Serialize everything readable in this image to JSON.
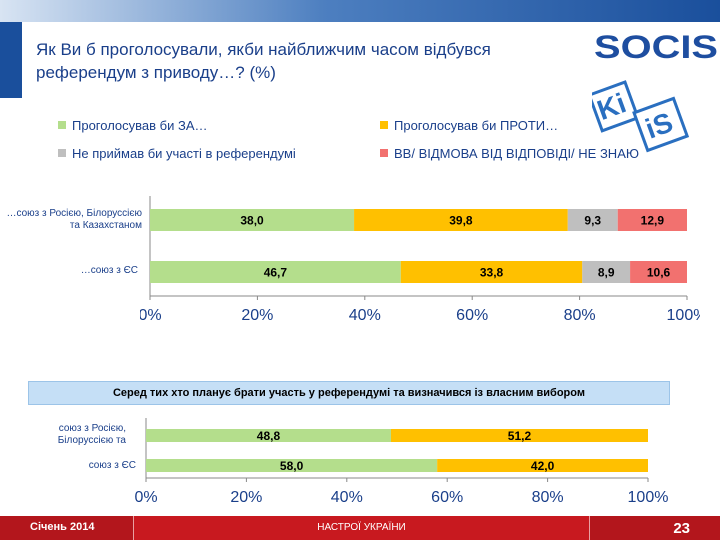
{
  "header": {
    "title_line1": "Як Ви б проголосували, якби найближчим часом відбувся",
    "title_line2": "референдум з приводу…? (%)"
  },
  "logo": {
    "text_main": "SOCIS",
    "text_kiis_1": "Ki",
    "text_kiis_2": "iS"
  },
  "legend": [
    {
      "label": "Проголосував би ЗА…",
      "color": "#b4de8c"
    },
    {
      "label": "Проголосував би ПРОТИ…",
      "color": "#ffc000"
    },
    {
      "label": "Не приймав би участі в референдумі",
      "color": "#bfbfbf"
    },
    {
      "label": "ВВ/ ВІДМОВА ВІД ВІДПОВІДІ/ НЕ ЗНАЮ",
      "color": "#f2716f"
    }
  ],
  "chart_data": [
    {
      "type": "bar",
      "orientation": "horizontal",
      "stacked": true,
      "categories": [
        "…союз з Росією, Білоруссією та Казахстаном",
        "…союз з ЄС"
      ],
      "category_lines": [
        [
          "…союз з Росією, Білоруссією",
          "та Казахстаном"
        ],
        [
          "…союз з ЄС"
        ]
      ],
      "series": [
        {
          "name": "Проголосував би ЗА…",
          "color": "#b4de8c",
          "values": [
            38.0,
            46.7
          ],
          "labels": [
            "38,0",
            "46,7"
          ]
        },
        {
          "name": "Проголосував би ПРОТИ…",
          "color": "#ffc000",
          "values": [
            39.8,
            33.8
          ],
          "labels": [
            "39,8",
            "33,8"
          ]
        },
        {
          "name": "Не приймав би участі в референдумі",
          "color": "#bfbfbf",
          "values": [
            9.3,
            8.9
          ],
          "labels": [
            "9,3",
            "8,9"
          ]
        },
        {
          "name": "ВВ/ ВІДМОВА ВІД ВІДПОВІДІ/ НЕ ЗНАЮ",
          "color": "#f2716f",
          "values": [
            12.9,
            10.6
          ],
          "labels": [
            "12,9",
            "10,6"
          ]
        }
      ],
      "xlim": [
        0,
        100
      ],
      "xticks": [
        "0%",
        "20%",
        "40%",
        "60%",
        "80%",
        "100%"
      ]
    },
    {
      "type": "bar",
      "orientation": "horizontal",
      "stacked": true,
      "title": "Серед тих хто планує брати участь у референдумі та визначився із власним вибором",
      "categories": [
        "союз з Росією, Білоруссією та",
        "союз з ЄС"
      ],
      "category_lines": [
        [
          "союз з Росією,",
          "Білоруссією та"
        ],
        [
          "союз з ЄС"
        ]
      ],
      "series": [
        {
          "name": "Проголосував би ЗА…",
          "color": "#b4de8c",
          "values": [
            48.8,
            58.0
          ],
          "labels": [
            "48,8",
            "58,0"
          ]
        },
        {
          "name": "Проголосував би ПРОТИ…",
          "color": "#ffc000",
          "values": [
            51.2,
            42.0
          ],
          "labels": [
            "51,2",
            "42,0"
          ]
        }
      ],
      "xlim": [
        0,
        100
      ],
      "xticks": [
        "0%",
        "20%",
        "40%",
        "60%",
        "80%",
        "100%"
      ]
    }
  ],
  "footer": {
    "date": "Січень 2014",
    "center": "НАСТРОЇ УКРАЇНИ",
    "page": "23"
  }
}
